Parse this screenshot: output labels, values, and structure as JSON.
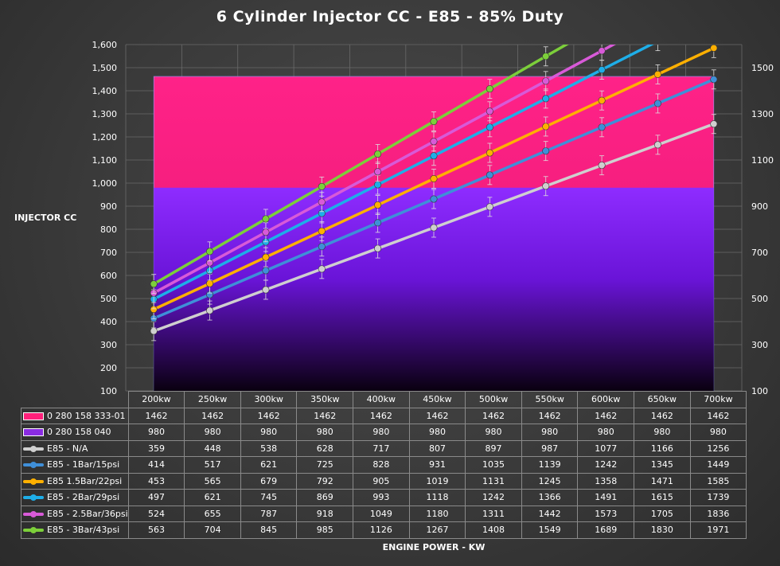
{
  "chart_data": {
    "type": "line",
    "title": "6 Cylinder Injector CC - E85 - 85% Duty",
    "ylabel": "INJECTOR CC",
    "xlabel": "ENGINE POWER - KW",
    "categories": [
      "200kw",
      "250kw",
      "300kw",
      "350kw",
      "400kw",
      "450kw",
      "500kw",
      "550kw",
      "600kw",
      "650kw",
      "700kw"
    ],
    "ylim": [
      100,
      1600
    ],
    "yticks_left": [
      "100",
      "200",
      "300",
      "400",
      "500",
      "600",
      "700",
      "800",
      "900",
      "1,000",
      "1,100",
      "1,200",
      "1,300",
      "1,400",
      "1,500",
      "1,600"
    ],
    "yticks_right": [
      "100",
      "300",
      "500",
      "700",
      "900",
      "1100",
      "1300",
      "1500"
    ],
    "grid": true,
    "error_bars": true,
    "area_series": [
      {
        "name": "0 280 158 333-01",
        "values": [
          1462,
          1462,
          1462,
          1462,
          1462,
          1462,
          1462,
          1462,
          1462,
          1462,
          1462
        ],
        "color": "#ff1f7a"
      },
      {
        "name": "0 280 158 040",
        "values": [
          980,
          980,
          980,
          980,
          980,
          980,
          980,
          980,
          980,
          980,
          980
        ],
        "color": "#8a2be2"
      }
    ],
    "series": [
      {
        "name": "E85 - N/A",
        "values": [
          359,
          448,
          538,
          628,
          717,
          807,
          897,
          987,
          1077,
          1166,
          1256
        ],
        "color": "#cfcfcf"
      },
      {
        "name": "E85 - 1Bar/15psi",
        "values": [
          414,
          517,
          621,
          725,
          828,
          931,
          1035,
          1139,
          1242,
          1345,
          1449
        ],
        "color": "#3f8fd8"
      },
      {
        "name": "E85 1.5Bar/22psi",
        "values": [
          453,
          565,
          679,
          792,
          905,
          1019,
          1131,
          1245,
          1358,
          1471,
          1585
        ],
        "color": "#ffb000"
      },
      {
        "name": "E85 - 2Bar/29psi",
        "values": [
          497,
          621,
          745,
          869,
          993,
          1118,
          1242,
          1366,
          1491,
          1615,
          1739
        ],
        "color": "#1eaee8"
      },
      {
        "name": "E85 - 2.5Bar/36psi",
        "values": [
          524,
          655,
          787,
          918,
          1049,
          1180,
          1311,
          1442,
          1573,
          1705,
          1836
        ],
        "color": "#d85ad8"
      },
      {
        "name": "E85 - 3Bar/43psi",
        "values": [
          563,
          704,
          845,
          985,
          1126,
          1267,
          1408,
          1549,
          1689,
          1830,
          1971
        ],
        "color": "#7ccf3a"
      }
    ]
  }
}
